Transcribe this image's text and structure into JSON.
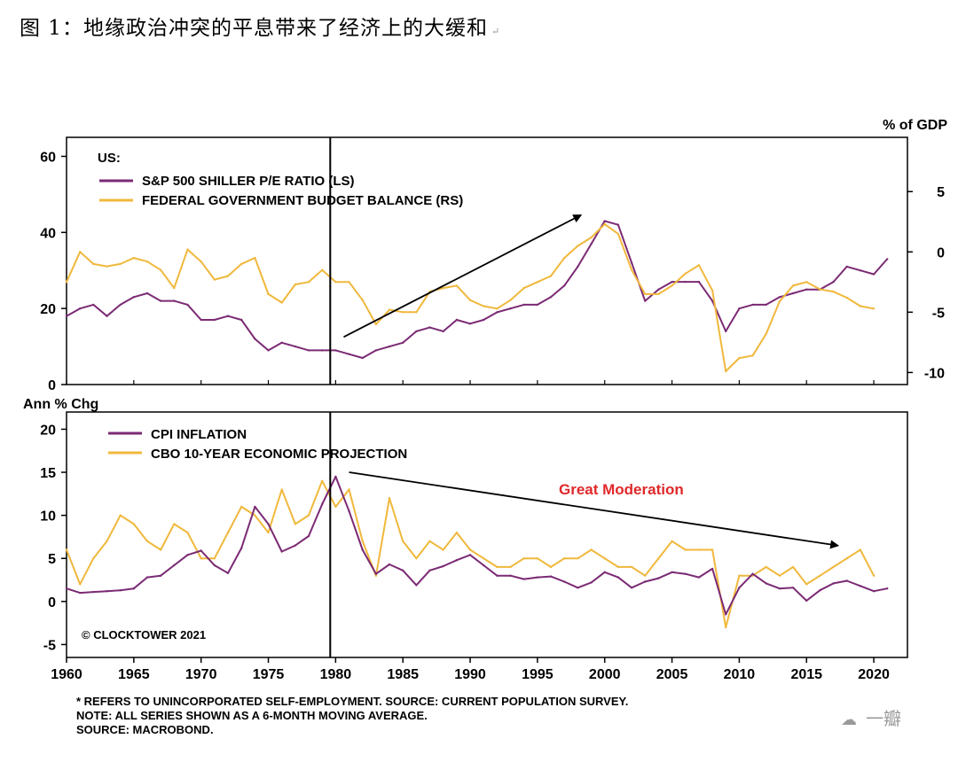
{
  "figure_title": "图 1：地缘政治冲突的平息带来了经济上的大缓和",
  "title_return_mark": "↵",
  "copyright": "© CLOCKTOWER 2021",
  "footnotes": [
    "* REFERS TO UNINCORPORATED SELF-EMPLOYMENT. SOURCE: CURRENT POPULATION SURVEY.",
    "NOTE: ALL SERIES SHOWN AS A 6-MONTH MOVING AVERAGE.",
    "SOURCE: MACROBOND."
  ],
  "watermark": "一瓣",
  "colors": {
    "purple": "#7b2a74",
    "gold": "#f0b83c",
    "annotation_red": "#e0282a"
  },
  "chart_data": [
    {
      "type": "line",
      "panel": "top",
      "region_label": "US:",
      "ylabel_left": "",
      "ylabel_right": "% of GDP",
      "ylim_left": [
        0,
        65
      ],
      "ylim_right": [
        -11,
        9.5
      ],
      "yticks_left": [
        0,
        20,
        40,
        60
      ],
      "yticks_right": [
        -10,
        -5,
        0,
        5
      ],
      "xlim": [
        1960,
        2022.5
      ],
      "vline_year": 1979.6,
      "arrow": {
        "from": [
          1980.6,
          12.5
        ],
        "to": [
          1998.2,
          44.5
        ]
      },
      "series": [
        {
          "name": "S&P 500 SHILLER P/E RATIO (LS)",
          "color": "#7b2a74",
          "axis": "left",
          "x": [
            1960,
            1961,
            1962,
            1963,
            1964,
            1965,
            1966,
            1967,
            1968,
            1969,
            1970,
            1971,
            1972,
            1973,
            1974,
            1975,
            1976,
            1977,
            1978,
            1979,
            1980,
            1981,
            1982,
            1983,
            1984,
            1985,
            1986,
            1987,
            1988,
            1989,
            1990,
            1991,
            1992,
            1993,
            1994,
            1995,
            1996,
            1997,
            1998,
            1999,
            2000,
            2001,
            2002,
            2003,
            2004,
            2005,
            2006,
            2007,
            2008,
            2009,
            2010,
            2011,
            2012,
            2013,
            2014,
            2015,
            2016,
            2017,
            2018,
            2019,
            2020,
            2021
          ],
          "values": [
            18,
            20,
            21,
            18,
            21,
            23,
            24,
            22,
            22,
            21,
            17,
            17,
            18,
            17,
            12,
            9,
            11,
            10,
            9,
            9,
            9,
            8,
            7,
            9,
            10,
            11,
            14,
            15,
            14,
            17,
            16,
            17,
            19,
            20,
            21,
            21,
            23,
            26,
            31,
            37,
            43,
            42,
            32,
            22,
            25,
            27,
            27,
            27,
            22,
            14,
            20,
            21,
            21,
            23,
            24,
            25,
            25,
            27,
            31,
            30,
            29,
            33
          ]
        },
        {
          "name": "FEDERAL GOVERNMENT BUDGET BALANCE (RS)",
          "color": "#f0b83c",
          "axis": "right",
          "x": [
            1960,
            1961,
            1962,
            1963,
            1964,
            1965,
            1966,
            1967,
            1968,
            1969,
            1970,
            1971,
            1972,
            1973,
            1974,
            1975,
            1976,
            1977,
            1978,
            1979,
            1980,
            1981,
            1982,
            1983,
            1984,
            1985,
            1986,
            1987,
            1988,
            1989,
            1990,
            1991,
            1992,
            1993,
            1994,
            1995,
            1996,
            1997,
            1998,
            1999,
            2000,
            2001,
            2002,
            2003,
            2004,
            2005,
            2006,
            2007,
            2008,
            2009,
            2010,
            2011,
            2012,
            2013,
            2014,
            2015,
            2016,
            2017,
            2018,
            2019,
            2020
          ],
          "values": [
            -2.5,
            0,
            -1,
            -1.2,
            -1,
            -0.5,
            -0.8,
            -1.5,
            -3,
            0.2,
            -0.8,
            -2.3,
            -2,
            -1,
            -0.5,
            -3.5,
            -4.2,
            -2.7,
            -2.5,
            -1.5,
            -2.5,
            -2.5,
            -4,
            -6,
            -4.8,
            -5,
            -5,
            -3.3,
            -3,
            -2.8,
            -4,
            -4.5,
            -4.7,
            -4,
            -3,
            -2.5,
            -2,
            -0.5,
            0.5,
            1.2,
            2.3,
            1.5,
            -1.5,
            -3.5,
            -3.5,
            -2.8,
            -1.8,
            -1.1,
            -3.2,
            -9.9,
            -8.8,
            -8.6,
            -6.8,
            -4.1,
            -2.8,
            -2.5,
            -3.1,
            -3.3,
            -3.8,
            -4.5,
            -4.7
          ]
        }
      ]
    },
    {
      "type": "line",
      "panel": "bottom",
      "ylabel": "Ann % Chg",
      "ylim": [
        -6.5,
        22
      ],
      "yticks": [
        -5,
        0,
        5,
        10,
        15,
        20
      ],
      "xlim": [
        1960,
        2022.5
      ],
      "xticks": [
        1960,
        1965,
        1970,
        1975,
        1980,
        1985,
        1990,
        1995,
        2000,
        2005,
        2010,
        2015,
        2020
      ],
      "vline_year": 1979.6,
      "arrow": {
        "from": [
          1981,
          15
        ],
        "to": [
          2017.3,
          6.5
        ]
      },
      "annotation": "Great Moderation",
      "series": [
        {
          "name": "CPI INFLATION",
          "color": "#7b2a74",
          "x": [
            1960,
            1961,
            1962,
            1963,
            1964,
            1965,
            1966,
            1967,
            1968,
            1969,
            1970,
            1971,
            1972,
            1973,
            1974,
            1975,
            1976,
            1977,
            1978,
            1979,
            1980,
            1981,
            1982,
            1983,
            1984,
            1985,
            1986,
            1987,
            1988,
            1989,
            1990,
            1991,
            1992,
            1993,
            1994,
            1995,
            1996,
            1997,
            1998,
            1999,
            2000,
            2001,
            2002,
            2003,
            2004,
            2005,
            2006,
            2007,
            2008,
            2009,
            2010,
            2011,
            2012,
            2013,
            2014,
            2015,
            2016,
            2017,
            2018,
            2019,
            2020,
            2021
          ],
          "values": [
            1.5,
            1,
            1.1,
            1.2,
            1.3,
            1.5,
            2.8,
            3,
            4.2,
            5.4,
            5.9,
            4.2,
            3.3,
            6.2,
            11,
            9,
            5.8,
            6.5,
            7.6,
            11.3,
            14.5,
            10.5,
            6,
            3.2,
            4.3,
            3.6,
            1.9,
            3.6,
            4.1,
            4.8,
            5.4,
            4.2,
            3,
            3,
            2.6,
            2.8,
            2.9,
            2.3,
            1.6,
            2.2,
            3.4,
            2.8,
            1.6,
            2.3,
            2.7,
            3.4,
            3.2,
            2.8,
            3.8,
            -1.5,
            1.6,
            3.2,
            2.1,
            1.5,
            1.6,
            0.1,
            1.3,
            2.1,
            2.4,
            1.8,
            1.2,
            1.5
          ]
        },
        {
          "name": "CBO 10-YEAR ECONOMIC PROJECTION",
          "color": "#f0b83c",
          "x": [
            1960,
            1961,
            1962,
            1963,
            1964,
            1965,
            1966,
            1967,
            1968,
            1969,
            1970,
            1971,
            1972,
            1973,
            1974,
            1975,
            1976,
            1977,
            1978,
            1979,
            1980,
            1981,
            1982,
            1983,
            1984,
            1985,
            1986,
            1987,
            1988,
            1989,
            1990,
            1991,
            1992,
            1993,
            1994,
            1995,
            1996,
            1997,
            1998,
            1999,
            2000,
            2001,
            2002,
            2003,
            2004,
            2005,
            2006,
            2007,
            2008,
            2009,
            2010,
            2011,
            2012,
            2013,
            2014,
            2015,
            2016,
            2017,
            2018,
            2019,
            2020
          ],
          "values": [
            6,
            2,
            5,
            7,
            10,
            9,
            7,
            6,
            9,
            8,
            5,
            5,
            8,
            11,
            10,
            8,
            13,
            9,
            10,
            14,
            11,
            13,
            7,
            3,
            12,
            7,
            5,
            7,
            6,
            8,
            6,
            5,
            4,
            4,
            5,
            5,
            4,
            5,
            5,
            6,
            5,
            4,
            4,
            3,
            5,
            7,
            6,
            6,
            6,
            -3,
            3,
            3,
            4,
            3,
            4,
            2,
            3,
            4,
            5,
            6,
            3
          ]
        }
      ]
    }
  ]
}
